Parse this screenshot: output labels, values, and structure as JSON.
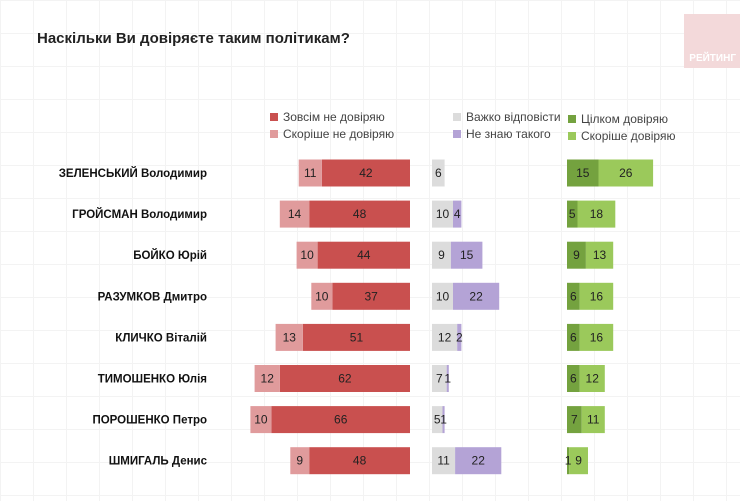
{
  "title": "Наскільки Ви довіряєте таким політикам?",
  "logo_text": "РЕЙТИНГ",
  "chart_data": {
    "type": "bar",
    "title": "Наскільки Ви довіряєте таким політикам?",
    "categories": [
      "ЗЕЛЕНСЬКИЙ Володимир",
      "ГРОЙСМАН Володимир",
      "БОЙКО Юрій",
      "РАЗУМКОВ Дмитро",
      "КЛИЧКО Віталій",
      "ТИМОШЕНКО Юлія",
      "ПОРОШЕНКО Петро",
      "ШМИГАЛЬ Денис"
    ],
    "series": [
      {
        "name": "Зовсім не довіряю",
        "color": "#c9504f",
        "values": [
          42,
          48,
          44,
          37,
          51,
          62,
          66,
          48
        ]
      },
      {
        "name": "Скоріше не довіряю",
        "color": "#e09b9c",
        "values": [
          11,
          14,
          10,
          10,
          13,
          12,
          10,
          9
        ]
      },
      {
        "name": "Важко відповісти",
        "color": "#dcdcdc",
        "values": [
          6,
          10,
          9,
          10,
          12,
          7,
          5,
          11
        ]
      },
      {
        "name": "Не знаю такого",
        "color": "#b4a3d6",
        "values": [
          0,
          4,
          15,
          22,
          2,
          1,
          1,
          22
        ]
      },
      {
        "name": "Цілком довіряю",
        "color": "#74a23f",
        "values": [
          15,
          5,
          9,
          6,
          6,
          6,
          7,
          1
        ]
      },
      {
        "name": "Скоріше довіряю",
        "color": "#9bc95b",
        "values": [
          26,
          18,
          13,
          16,
          16,
          12,
          11,
          9
        ]
      }
    ],
    "legend_placement": "top",
    "grid": true
  }
}
